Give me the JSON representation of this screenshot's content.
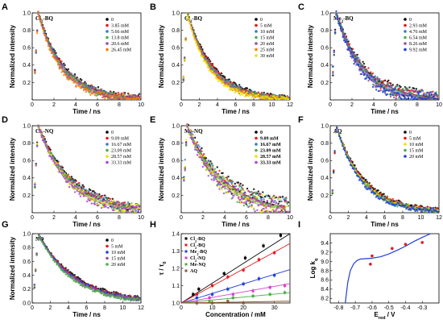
{
  "chart_data": [
    {
      "panel": "A",
      "type": "scatter",
      "inner_label": "Cl2-BQ",
      "inner_label_sub": "2",
      "xlabel": "Time / ns",
      "ylabel": "Normalized intensity",
      "xlim": [
        0,
        10
      ],
      "ylim": [
        0,
        1.0
      ],
      "xticks": [
        0,
        2,
        4,
        6,
        8,
        10
      ],
      "yticks": [
        0.2,
        0.4,
        0.6,
        0.8,
        1.0
      ],
      "tau": 2.5,
      "peak": 0.7,
      "noise": 0.03,
      "series": [
        {
          "name": "0",
          "color": "#000000"
        },
        {
          "name": "3.85 mM",
          "color": "#e41a1c"
        },
        {
          "name": "5.66 mM",
          "color": "#377eb8"
        },
        {
          "name": "13.8 mM",
          "color": "#4daf4a"
        },
        {
          "name": "20.6 mM",
          "color": "#984ea3"
        },
        {
          "name": "26.45 mM",
          "color": "#ff7f00"
        }
      ]
    },
    {
      "panel": "B",
      "type": "scatter",
      "inner_label": "Cl2-BQ",
      "inner_label_sub": "2",
      "xlabel": "Time / ns",
      "ylabel": "Normalized intensity",
      "xlim": [
        0,
        12
      ],
      "ylim": [
        0,
        1.0
      ],
      "xticks": [
        0,
        2,
        4,
        6,
        8,
        10,
        12
      ],
      "yticks": [
        0.2,
        0.4,
        0.6,
        0.8,
        1.0
      ],
      "tau": 3.0,
      "peak": 0.8,
      "noise": 0.02,
      "series": [
        {
          "name": "0",
          "color": "#000000"
        },
        {
          "name": "5 mM",
          "color": "#e41a1c"
        },
        {
          "name": "10 mM",
          "color": "#377eb8"
        },
        {
          "name": "15 mM",
          "color": "#4daf4a"
        },
        {
          "name": "20 mM",
          "color": "#984ea3"
        },
        {
          "name": "25 mM",
          "color": "#ff7f00"
        },
        {
          "name": "30 mM",
          "color": "#e6e600"
        }
      ]
    },
    {
      "panel": "C",
      "type": "scatter",
      "inner_label": "Me2-BQ",
      "inner_label_sub": "2",
      "xlabel": "Time / ns",
      "ylabel": "Normalized intensity",
      "xlim": [
        0,
        10
      ],
      "ylim": [
        0,
        1.0
      ],
      "xticks": [
        0,
        2,
        4,
        6,
        8,
        10
      ],
      "yticks": [
        0.2,
        0.4,
        0.6,
        0.8,
        1.0
      ],
      "tau": 2.6,
      "peak": 0.6,
      "noise": 0.05,
      "series": [
        {
          "name": "0",
          "color": "#000000"
        },
        {
          "name": "2.93 mM",
          "color": "#e41a1c"
        },
        {
          "name": "4.76 mM",
          "color": "#377eb8"
        },
        {
          "name": "6.54 mM",
          "color": "#4daf4a"
        },
        {
          "name": "8.26 mM",
          "color": "#984ea3"
        },
        {
          "name": "9.92 mM",
          "color": "#1f3fd8"
        }
      ]
    },
    {
      "panel": "D",
      "type": "scatter",
      "inner_label": "Cl2-NQ",
      "inner_label_sub": "2",
      "xlabel": "Time / ns",
      "ylabel": "Normalized intensity",
      "xlim": [
        0,
        10
      ],
      "ylim": [
        0,
        1.0
      ],
      "xticks": [
        0,
        2,
        4,
        6,
        8,
        10
      ],
      "yticks": [
        0.2,
        0.4,
        0.6,
        0.8,
        1.0
      ],
      "tau": 3.2,
      "peak": 1.0,
      "noise": 0.04,
      "series": [
        {
          "name": "0",
          "color": "#000000"
        },
        {
          "name": "9.09 mM",
          "color": "#e41a1c"
        },
        {
          "name": "16.67 mM",
          "color": "#377eb8"
        },
        {
          "name": "23.09 mM",
          "color": "#4daf4a"
        },
        {
          "name": "28.57 mM",
          "color": "#e6e600"
        },
        {
          "name": "33.33 mM",
          "color": "#b040e0"
        }
      ]
    },
    {
      "panel": "E",
      "type": "scatter",
      "inner_label": "Me-NQ",
      "xlabel": "Time / ns",
      "ylabel": "Normalized intensity",
      "xlim": [
        0,
        10
      ],
      "ylim": [
        0,
        1.0
      ],
      "xticks": [
        0,
        2,
        4,
        6,
        8,
        10
      ],
      "yticks": [
        0.2,
        0.4,
        0.6,
        0.8,
        1.0
      ],
      "tau": 3.4,
      "peak": 1.0,
      "noise": 0.08,
      "legend_bold": true,
      "series": [
        {
          "name": "0",
          "color": "#000000"
        },
        {
          "name": "9.09 mM",
          "color": "#e41a1c"
        },
        {
          "name": "16.67 mM",
          "color": "#377eb8"
        },
        {
          "name": "23.09 mM",
          "color": "#4daf4a"
        },
        {
          "name": "28.57 mM",
          "color": "#e6e600"
        },
        {
          "name": "33.33 mM",
          "color": "#b040e0"
        }
      ]
    },
    {
      "panel": "F",
      "type": "scatter",
      "inner_label": "AQ",
      "xlabel": "Time / ns",
      "ylabel": "Normalized intensity",
      "xlim": [
        0,
        12
      ],
      "ylim": [
        0,
        1.0
      ],
      "xticks": [
        0,
        2,
        4,
        6,
        8,
        10,
        12
      ],
      "yticks": [
        0.2,
        0.4,
        0.6,
        0.8,
        1.0
      ],
      "tau": 3.2,
      "peak": 1.0,
      "noise": 0.02,
      "series": [
        {
          "name": "0",
          "color": "#000000"
        },
        {
          "name": "5 mM",
          "color": "#e41a1c"
        },
        {
          "name": "10 mM",
          "color": "#e6e600"
        },
        {
          "name": "15 mM",
          "color": "#4daf4a"
        },
        {
          "name": "20 mM",
          "color": "#1f3fd8"
        }
      ]
    },
    {
      "panel": "G",
      "type": "scatter",
      "inner_label": "NQ",
      "xlabel": "Time / ns",
      "ylabel": "Normalized intensity",
      "xlim": [
        0,
        12
      ],
      "ylim": [
        0,
        1.0
      ],
      "xticks": [
        0,
        2,
        4,
        6,
        8,
        10,
        12
      ],
      "yticks": [
        0.0,
        0.2,
        0.4,
        0.6,
        0.8,
        1.0
      ],
      "tau": 4.2,
      "peak": 1.0,
      "noise": 0.02,
      "series": [
        {
          "name": "0",
          "color": "#000000"
        },
        {
          "name": "5 mM",
          "color": "#e41a1c"
        },
        {
          "name": "10 mM",
          "color": "#1f3fd8"
        },
        {
          "name": "15 mM",
          "color": "#984ea3"
        },
        {
          "name": "20 mM",
          "color": "#4daf4a"
        }
      ]
    },
    {
      "panel": "H",
      "type": "line",
      "xlabel": "Concentration / mM",
      "ylabel": "τ / τ",
      "ylabel_sub": "0",
      "xlim": [
        0,
        35
      ],
      "ylim": [
        1.0,
        1.4
      ],
      "xticks": [
        0,
        10,
        20,
        30
      ],
      "yticks": [
        1.0,
        1.1,
        1.2,
        1.3,
        1.4
      ],
      "series": [
        {
          "name": "Cl2-BQ",
          "color": "#000000",
          "slope": 0.01278,
          "points": [
            [
              3.85,
              1.05
            ],
            [
              5.66,
              1.08
            ],
            [
              13.8,
              1.17
            ],
            [
              20.6,
              1.26
            ],
            [
              26.45,
              1.33
            ],
            [
              32.0,
              1.39
            ]
          ]
        },
        {
          "name": "Cl2-BQ",
          "color": "#e41a1c",
          "slope": 0.0098,
          "points": [
            [
              5,
              1.05
            ],
            [
              10,
              1.1
            ],
            [
              15,
              1.15
            ],
            [
              20,
              1.19
            ],
            [
              25,
              1.25
            ],
            [
              30,
              1.29
            ]
          ]
        },
        {
          "name": "Me2-BQ",
          "color": "#1f3fd8",
          "slope": 0.0055,
          "points": [
            [
              5,
              1.03
            ],
            [
              10,
              1.05
            ],
            [
              15,
              1.08
            ],
            [
              20,
              1.11
            ],
            [
              25,
              1.14
            ],
            [
              30,
              1.16
            ]
          ]
        },
        {
          "name": "Cl2-NQ",
          "color": "#d33fd3",
          "slope": 0.0032,
          "points": [
            [
              9.09,
              1.03
            ],
            [
              16.67,
              1.05
            ],
            [
              23.09,
              1.07
            ],
            [
              28.57,
              1.09
            ],
            [
              33.33,
              1.1
            ]
          ]
        },
        {
          "name": "Me-NQ",
          "color": "#4daf4a",
          "slope": 0.0017,
          "points": [
            [
              9.09,
              1.01
            ],
            [
              16.67,
              1.03
            ],
            [
              23.09,
              1.04
            ],
            [
              28.57,
              1.05
            ],
            [
              33.33,
              1.06
            ]
          ]
        },
        {
          "name": "AQ",
          "color": "#8a5a2b",
          "slope": 0.0003,
          "points": [
            [
              5,
              1.0
            ],
            [
              10,
              1.0
            ],
            [
              15,
              1.01
            ],
            [
              20,
              1.0
            ]
          ]
        }
      ]
    },
    {
      "panel": "I",
      "type": "line",
      "xlabel": "E",
      "xlabel_sub": "red",
      "xlabel_unit": " / V",
      "ylabel": "Log k",
      "ylabel_sub": "q",
      "xlim": [
        -0.85,
        -0.2
      ],
      "ylim": [
        8.1,
        9.6
      ],
      "xticks": [
        -0.8,
        -0.7,
        -0.6,
        -0.5,
        -0.4,
        -0.3
      ],
      "yticks": [
        8.2,
        8.4,
        8.6,
        8.8,
        9.0,
        9.2,
        9.4
      ],
      "points": [
        [
          -0.61,
          8.94
        ],
        [
          -0.6,
          9.12
        ],
        [
          -0.48,
          9.28
        ],
        [
          -0.4,
          9.37
        ],
        [
          -0.3,
          9.41
        ]
      ],
      "curve": [
        [
          -0.76,
          8.1
        ],
        [
          -0.745,
          8.55
        ],
        [
          -0.73,
          8.8
        ],
        [
          -0.71,
          8.95
        ],
        [
          -0.69,
          9.02
        ],
        [
          -0.67,
          9.05
        ],
        [
          -0.6,
          9.07
        ],
        [
          -0.55,
          9.1
        ],
        [
          -0.5,
          9.16
        ],
        [
          -0.45,
          9.24
        ],
        [
          -0.4,
          9.33
        ],
        [
          -0.35,
          9.43
        ],
        [
          -0.3,
          9.52
        ],
        [
          -0.25,
          9.6
        ]
      ],
      "curve_color": "#1f3fd8",
      "point_color": "#e41a1c"
    }
  ]
}
